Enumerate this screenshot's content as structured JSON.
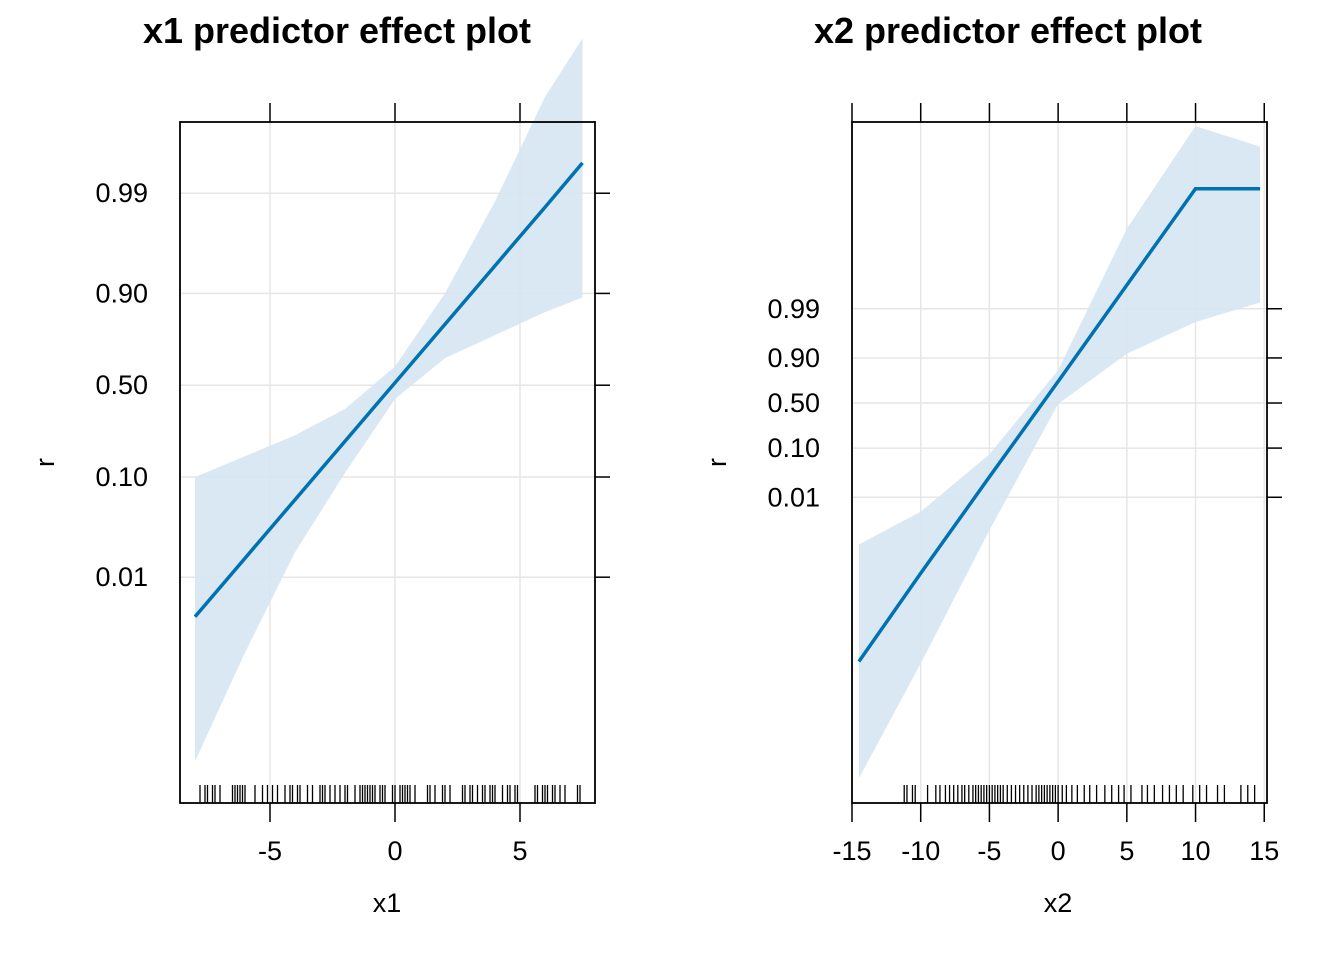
{
  "chart_data": [
    {
      "type": "line",
      "title": "x1 predictor effect plot",
      "xlabel": "x1",
      "ylabel": "r",
      "xlim": [
        -8.6,
        8.0
      ],
      "ylim": [
        -10.0,
        6.3
      ],
      "x_ticks": [
        -5,
        0,
        5
      ],
      "y_scale": "logit",
      "y_ticks": [
        0.01,
        0.1,
        0.5,
        0.9,
        0.99
      ],
      "y_tick_labels": [
        "0.01",
        "0.10",
        "0.50",
        "0.90",
        "0.99"
      ],
      "grid": true,
      "series": [
        {
          "x": [
            -8.0,
            -6.0,
            -4.0,
            -2.0,
            0.0,
            2.0,
            4.0,
            6.0,
            7.5
          ],
          "y": [
            -5.54,
            -4.14,
            -2.74,
            -1.34,
            0.06,
            1.46,
            2.86,
            4.26,
            5.32
          ],
          "lower": [
            -9.0,
            -6.4,
            -4.0,
            -2.1,
            -0.33,
            0.65,
            1.2,
            1.75,
            2.1
          ],
          "upper": [
            -2.2,
            -1.7,
            -1.2,
            -0.57,
            0.45,
            2.2,
            4.4,
            6.9,
            8.3
          ]
        }
      ],
      "rug": [
        -7.8,
        -7.6,
        -7.5,
        -7.3,
        -7.2,
        -7.0,
        -6.5,
        -6.4,
        -6.3,
        -6.2,
        -6.1,
        -6.0,
        -5.6,
        -5.3,
        -5.1,
        -4.9,
        -4.7,
        -4.4,
        -4.2,
        -4.1,
        -3.9,
        -3.8,
        -3.5,
        -3.3,
        -3.0,
        -2.9,
        -2.8,
        -2.6,
        -2.4,
        -2.2,
        -2.0,
        -1.9,
        -1.6,
        -1.4,
        -1.3,
        -1.2,
        -1.1,
        -1.0,
        -0.9,
        -0.8,
        -0.6,
        -0.5,
        -0.4,
        -0.1,
        0.0,
        0.2,
        0.3,
        0.4,
        0.5,
        0.6,
        0.8,
        1.3,
        1.4,
        1.6,
        1.9,
        2.0,
        2.2,
        2.7,
        2.8,
        3.0,
        3.1,
        3.3,
        3.5,
        3.6,
        3.8,
        3.9,
        4.0,
        4.3,
        4.5,
        4.6,
        4.8,
        4.9,
        5.6,
        5.7,
        5.9,
        6.0,
        6.1,
        6.3,
        6.4,
        6.6,
        6.8,
        7.3,
        7.4
      ]
    },
    {
      "type": "line",
      "title": "x2 predictor effect plot",
      "xlabel": "x2",
      "ylabel": "r",
      "xlim": [
        -15.0,
        15.2
      ],
      "ylim": [
        -19.5,
        13.7
      ],
      "x_ticks": [
        -15,
        -10,
        -5,
        0,
        5,
        10,
        15
      ],
      "y_scale": "logit",
      "y_ticks": [
        0.01,
        0.1,
        0.5,
        0.9,
        0.99
      ],
      "y_tick_labels": [
        "0.01",
        "0.10",
        "0.50",
        "0.90",
        "0.99"
      ],
      "grid": true,
      "series": [
        {
          "x": [
            -14.5,
            -10.0,
            -5.0,
            0.0,
            5.0,
            10.0,
            14.7
          ],
          "y": [
            -12.6,
            -8.3,
            -3.6,
            1.05,
            5.75,
            10.45,
            10.45
          ],
          "lower": [
            -18.3,
            -12.7,
            -6.2,
            -0.05,
            2.4,
            3.95,
            4.9
          ],
          "upper": [
            -6.9,
            -5.3,
            -2.5,
            1.6,
            8.5,
            13.5,
            12.5
          ]
        }
      ],
      "rug": [
        -11.2,
        -11.0,
        -10.6,
        -10.4,
        -9.5,
        -8.9,
        -8.6,
        -8.2,
        -7.9,
        -7.6,
        -7.3,
        -7.0,
        -6.8,
        -6.5,
        -6.2,
        -6.0,
        -5.8,
        -5.6,
        -5.4,
        -5.2,
        -5.0,
        -4.8,
        -4.6,
        -4.4,
        -4.2,
        -4.0,
        -3.7,
        -3.4,
        -3.1,
        -2.8,
        -2.5,
        -2.2,
        -1.9,
        -1.6,
        -1.4,
        -1.2,
        -1.0,
        -0.8,
        -0.6,
        -0.4,
        -0.2,
        0.0,
        0.3,
        0.6,
        1.0,
        1.4,
        1.9,
        2.3,
        2.8,
        3.4,
        3.9,
        4.4,
        4.8,
        5.3,
        6.1,
        6.5,
        7.0,
        7.6,
        8.1,
        8.6,
        9.1,
        9.8,
        10.3,
        10.8,
        11.6,
        12.1,
        13.3,
        13.8,
        14.3
      ]
    }
  ]
}
